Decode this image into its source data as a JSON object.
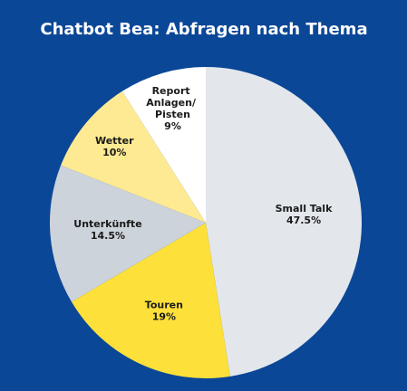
{
  "chart_data": {
    "type": "pie",
    "title": "Chatbot Bea: Abfragen nach Thema",
    "categories": [
      "Small Talk",
      "Touren",
      "Unterkünfte",
      "Wetter",
      "Report Anlagen/ Pisten"
    ],
    "values": [
      47.5,
      19,
      14.5,
      10,
      9
    ],
    "value_labels": [
      "47.5%",
      "19%",
      "14.5%",
      "10%",
      "9%"
    ],
    "colors": [
      "#e3e7ec",
      "#fde03a",
      "#cdd3da",
      "#feea92",
      "#ffffff"
    ]
  }
}
